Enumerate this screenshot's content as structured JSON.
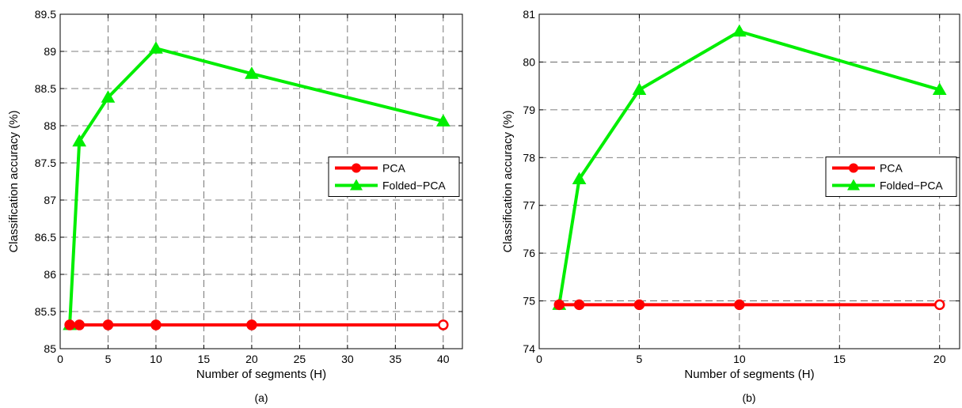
{
  "chart_data": [
    {
      "type": "line",
      "caption": "(a)",
      "xlabel": "Number of segments (H)",
      "ylabel": "Classification accuracy (%)",
      "xlim": [
        0,
        42
      ],
      "ylim": [
        85,
        89.5
      ],
      "xticks": [
        0,
        5,
        10,
        15,
        20,
        25,
        30,
        35,
        40
      ],
      "yticks": [
        85,
        85.5,
        86,
        86.5,
        87,
        87.5,
        88,
        88.5,
        89,
        89.5
      ],
      "ytick_labels": [
        "85",
        "85.5",
        "86",
        "86.5",
        "87",
        "87.5",
        "88",
        "88.5",
        "89",
        "89.5"
      ],
      "grid": true,
      "legend_position": "center-right",
      "series": [
        {
          "name": "PCA",
          "color": "#ff0000",
          "marker": "circle",
          "x": [
            1,
            2,
            5,
            10,
            20,
            40
          ],
          "y": [
            85.32,
            85.32,
            85.32,
            85.32,
            85.32,
            85.32
          ]
        },
        {
          "name": "Folded−PCA",
          "color": "#00ee00",
          "marker": "triangle",
          "x": [
            1,
            2,
            5,
            10,
            20,
            40
          ],
          "y": [
            85.32,
            87.79,
            88.38,
            89.04,
            88.7,
            88.06
          ]
        }
      ]
    },
    {
      "type": "line",
      "caption": "(b)",
      "xlabel": "Number of segments (H)",
      "ylabel": "Classification accuracy (%)",
      "xlim": [
        0,
        21
      ],
      "ylim": [
        74,
        81
      ],
      "xticks": [
        0,
        5,
        10,
        15,
        20
      ],
      "yticks": [
        74,
        75,
        76,
        77,
        78,
        79,
        80,
        81
      ],
      "ytick_labels": [
        "74",
        "75",
        "76",
        "77",
        "78",
        "79",
        "80",
        "81"
      ],
      "grid": true,
      "legend_position": "center-right",
      "series": [
        {
          "name": "PCA",
          "color": "#ff0000",
          "marker": "circle",
          "x": [
            1,
            2,
            5,
            10,
            20
          ],
          "y": [
            74.92,
            74.92,
            74.92,
            74.92,
            74.92
          ]
        },
        {
          "name": "Folded−PCA",
          "color": "#00ee00",
          "marker": "triangle",
          "x": [
            1,
            2,
            5,
            10,
            20
          ],
          "y": [
            74.92,
            77.55,
            79.42,
            80.64,
            79.42
          ]
        }
      ]
    }
  ]
}
